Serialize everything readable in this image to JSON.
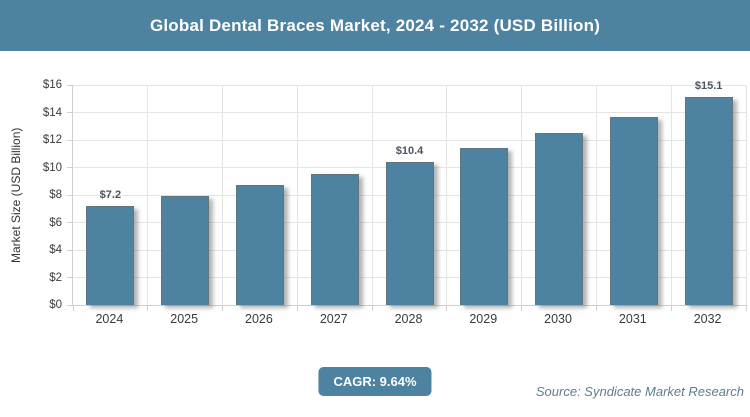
{
  "header": {
    "title": "Global Dental Braces Market, 2024 - 2032 (USD Billion)"
  },
  "chart_data": {
    "type": "bar",
    "title": "Global Dental Braces Market, 2024 - 2032 (USD Billion)",
    "categories": [
      "2024",
      "2025",
      "2026",
      "2027",
      "2028",
      "2029",
      "2030",
      "2031",
      "2032"
    ],
    "values": [
      7.2,
      7.9,
      8.7,
      9.5,
      10.4,
      11.4,
      12.5,
      13.7,
      15.1
    ],
    "data_labels": [
      {
        "index": 0,
        "text": "$7.2"
      },
      {
        "index": 4,
        "text": "$10.4"
      },
      {
        "index": 8,
        "text": "$15.1"
      }
    ],
    "xlabel": "",
    "ylabel": "Market Size (USD Billion)",
    "ylim": [
      0,
      16
    ],
    "ytick_values": [
      0,
      2,
      4,
      6,
      8,
      10,
      12,
      14,
      16
    ],
    "ytick_labels": [
      "$0",
      "$2",
      "$4",
      "$6",
      "$8",
      "$10",
      "$12",
      "$14",
      "$16"
    ],
    "grid": true,
    "legend": "none"
  },
  "footer": {
    "cagr_label": "CAGR: 9.64%",
    "source": "Source: Syndicate Market Research"
  },
  "colors": {
    "header_bg": "#4d82a0",
    "bar": "#4d82a0",
    "cagr_bg": "#4d82a0",
    "grid": "#e4e4e4",
    "axis": "#cfcfcf",
    "value_label": "#4b5561",
    "source_text": "#5e7e8f"
  }
}
